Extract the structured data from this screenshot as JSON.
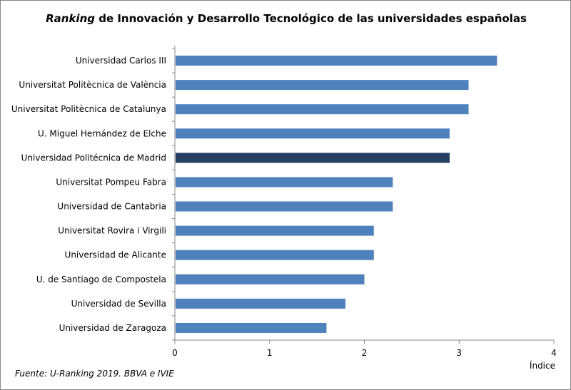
{
  "chart_data": {
    "type": "bar",
    "orientation": "horizontal",
    "title_italic": "Ranking",
    "title_rest": " de Innovación y Desarrollo Tecnológico de las universidades españolas",
    "xlabel": "Índice",
    "ylabel": "",
    "xlim": [
      0,
      4
    ],
    "xticks": [
      "0",
      "1",
      "2",
      "3",
      "4"
    ],
    "grid": false,
    "categories": [
      "Universidad Carlos III",
      "Universitat Politècnica de València",
      "Universitat Politècnica de Catalunya",
      "U. Miguel Hernández de Elche",
      "Universidad Politécnica de Madrid",
      "Universitat Pompeu Fabra",
      "Universidad de Cantabria",
      "Universitat Rovira i Virgili",
      "Universidad de Alicante",
      "U. de Santiago de Compostela",
      "Universidad de Sevilla",
      "Universidad de Zaragoza"
    ],
    "values": [
      3.4,
      3.1,
      3.1,
      2.9,
      2.9,
      2.3,
      2.3,
      2.1,
      2.1,
      2.0,
      1.8,
      1.6
    ],
    "highlight": "Universidad Politécnica de Madrid",
    "colors": {
      "bar": "#4f81bd",
      "highlight": "#243f60",
      "axis": "#888888"
    }
  },
  "source": "Fuente:  U-Ranking 2019. BBVA e IVIE"
}
